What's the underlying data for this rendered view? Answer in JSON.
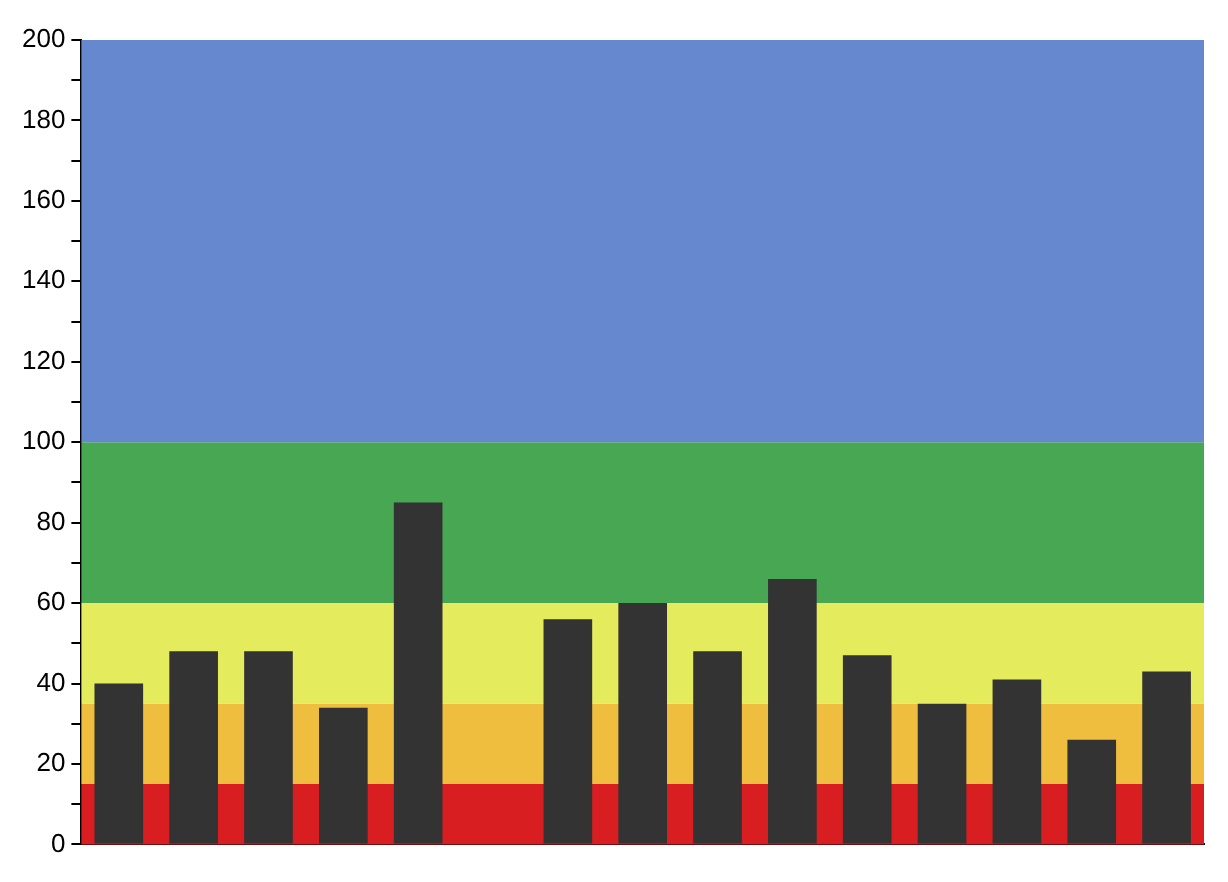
{
  "chart_data": {
    "type": "bar",
    "categories": [
      null,
      null,
      null,
      null,
      null,
      null,
      null,
      null,
      null,
      null,
      null,
      null,
      null,
      null,
      null
    ],
    "values": [
      40,
      48,
      48,
      34,
      85,
      null,
      56,
      60,
      48,
      66,
      47,
      35,
      41,
      26,
      43
    ],
    "color": "#333333",
    "ylim": [
      0,
      200
    ],
    "yticks": [
      0,
      {
        "value": 10,
        "label": null
      },
      20,
      {
        "value": 30,
        "label": null
      },
      40,
      {
        "value": 50,
        "label": null
      },
      60,
      {
        "value": 70,
        "label": null
      },
      80,
      {
        "value": 90,
        "label": null
      },
      100,
      {
        "value": 110,
        "label": null
      },
      120,
      {
        "value": 130,
        "label": null
      },
      140,
      {
        "value": 150,
        "label": null
      },
      160,
      {
        "value": 170,
        "label": null
      },
      180,
      {
        "value": 190,
        "label": null
      },
      200
    ],
    "bands": [
      {
        "axis": "y",
        "from": 0,
        "to": 15,
        "color": "#d91e22"
      },
      {
        "axis": "y",
        "from": 15,
        "to": 35,
        "color": "#f0be3e"
      },
      {
        "axis": "y",
        "from": 35,
        "to": 60,
        "color": "#e4eb5c"
      },
      {
        "axis": "y",
        "from": 60,
        "to": 100,
        "color": "#47a752"
      },
      {
        "axis": "y",
        "from": 100,
        "to": 200,
        "color": "#6688cf"
      }
    ],
    "grid": false,
    "legend": false
  }
}
